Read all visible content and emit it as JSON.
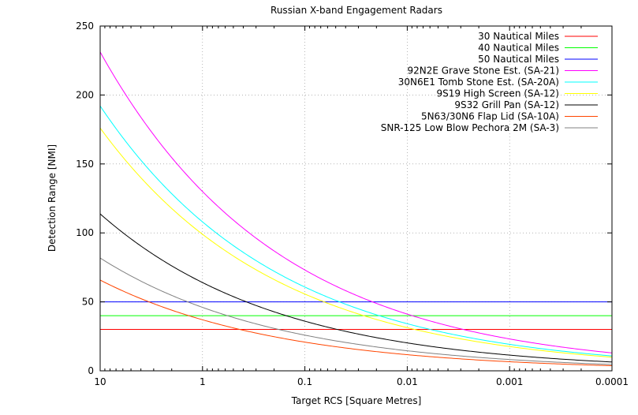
{
  "chart_data": {
    "type": "line",
    "title": "Russian X-band Engagement Radars",
    "xlabel": "Target RCS [Square Metres]",
    "ylabel": "Detection Range [NMI]",
    "x_scale": "log",
    "x_reversed": true,
    "xlim": [
      10,
      0.0001
    ],
    "ylim": [
      0,
      250
    ],
    "x_ticks": [
      10,
      1,
      0.1,
      0.01,
      0.001,
      0.0001
    ],
    "x_tick_labels": [
      "10",
      "1",
      "0.1",
      "0.01",
      "0.001",
      "0.0001"
    ],
    "y_ticks": [
      0,
      50,
      100,
      150,
      200,
      250
    ],
    "y_tick_labels": [
      "0",
      "50",
      "100",
      "150",
      "200",
      "250"
    ],
    "grid": true,
    "legend_position": "top-right",
    "series": [
      {
        "name": "30 Nautical Miles",
        "color": "#ff0000",
        "kind": "constant",
        "value": 30
      },
      {
        "name": "40 Nautical Miles",
        "color": "#00ff00",
        "kind": "constant",
        "value": 40
      },
      {
        "name": "50 Nautical Miles",
        "color": "#0000ff",
        "kind": "constant",
        "value": 50
      },
      {
        "name": "92N2E Grave Stone Est. (SA-21)",
        "color": "#ff00ff",
        "kind": "radar",
        "range_at_1": 130
      },
      {
        "name": "30N6E1 Tomb Stone Est. (SA-20A)",
        "color": "#00ffff",
        "kind": "radar",
        "range_at_1": 108
      },
      {
        "name": "9S19 High Screen (SA-12)",
        "color": "#ffff00",
        "kind": "radar",
        "range_at_1": 99
      },
      {
        "name": "9S32 Grill Pan (SA-12)",
        "color": "#000000",
        "kind": "radar",
        "range_at_1": 64
      },
      {
        "name": "5N63/30N6 Flap Lid (SA-10A)",
        "color": "#ff4500",
        "kind": "radar",
        "range_at_1": 37
      },
      {
        "name": "SNR-125 Low Blow Pechora 2M (SA-3)",
        "color": "#808080",
        "kind": "radar",
        "range_at_1": 46
      }
    ]
  }
}
